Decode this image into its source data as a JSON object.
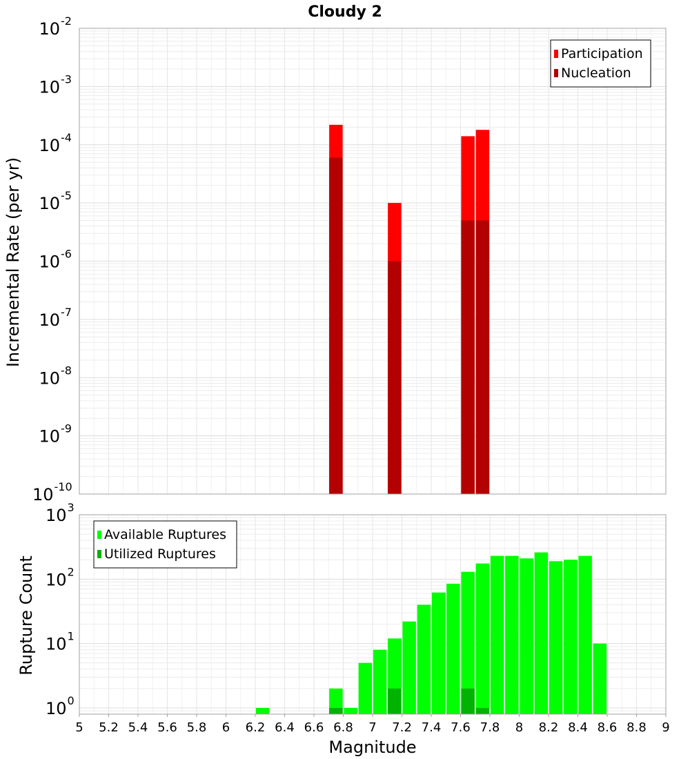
{
  "chart_data": [
    {
      "type": "bar",
      "title": "Cloudy 2",
      "ylabel": "Incremental Rate (per yr)",
      "yscale": "log",
      "ylim": [
        1e-10,
        0.01
      ],
      "xlim": [
        5,
        9
      ],
      "grid": true,
      "legend_position": "top-right",
      "y_ticks": [
        {
          "base": "10",
          "exp": "-10"
        },
        {
          "base": "10",
          "exp": "-9"
        },
        {
          "base": "10",
          "exp": "-8"
        },
        {
          "base": "10",
          "exp": "-7"
        },
        {
          "base": "10",
          "exp": "-6"
        },
        {
          "base": "10",
          "exp": "-5"
        },
        {
          "base": "10",
          "exp": "-4"
        },
        {
          "base": "10",
          "exp": "-3"
        },
        {
          "base": "10",
          "exp": "-2"
        }
      ],
      "series": [
        {
          "name": "Participation",
          "color": "#ff0000",
          "x": [
            6.75,
            7.15,
            7.65,
            7.75
          ],
          "values": [
            0.00022,
            1e-05,
            0.00014,
            0.00018
          ]
        },
        {
          "name": "Nucleation",
          "color": "#b30000",
          "x": [
            6.75,
            7.15,
            7.65,
            7.75
          ],
          "values": [
            6e-05,
            1e-06,
            5e-06,
            5e-06
          ]
        }
      ]
    },
    {
      "type": "bar",
      "ylabel": "Rupture Count",
      "xlabel": "Magnitude",
      "yscale": "log",
      "ylim": [
        0.8,
        1000
      ],
      "xlim": [
        5,
        9
      ],
      "grid": true,
      "legend_position": "top-left",
      "y_ticks": [
        {
          "base": "10",
          "exp": "0"
        },
        {
          "base": "10",
          "exp": "1"
        },
        {
          "base": "10",
          "exp": "2"
        },
        {
          "base": "10",
          "exp": "3"
        }
      ],
      "x_ticks": [
        "5",
        "5.2",
        "5.4",
        "5.6",
        "5.8",
        "6",
        "6.2",
        "6.4",
        "6.6",
        "6.8",
        "7",
        "7.2",
        "7.4",
        "7.6",
        "7.8",
        "8",
        "8.2",
        "8.4",
        "8.6",
        "8.8",
        "9"
      ],
      "series": [
        {
          "name": "Available Ruptures",
          "color": "#00ff00",
          "x": [
            6.25,
            6.75,
            6.85,
            6.95,
            7.05,
            7.15,
            7.25,
            7.35,
            7.45,
            7.55,
            7.65,
            7.75,
            7.85,
            7.95,
            8.05,
            8.15,
            8.25,
            8.35,
            8.45,
            8.55
          ],
          "values": [
            1,
            2,
            1,
            5,
            8,
            12,
            22,
            40,
            62,
            85,
            130,
            175,
            230,
            230,
            210,
            260,
            190,
            200,
            230,
            10
          ]
        },
        {
          "name": "Utilized Ruptures",
          "color": "#00b300",
          "x": [
            6.75,
            7.15,
            7.65,
            7.75
          ],
          "values": [
            1,
            2,
            2,
            1
          ]
        }
      ]
    }
  ]
}
